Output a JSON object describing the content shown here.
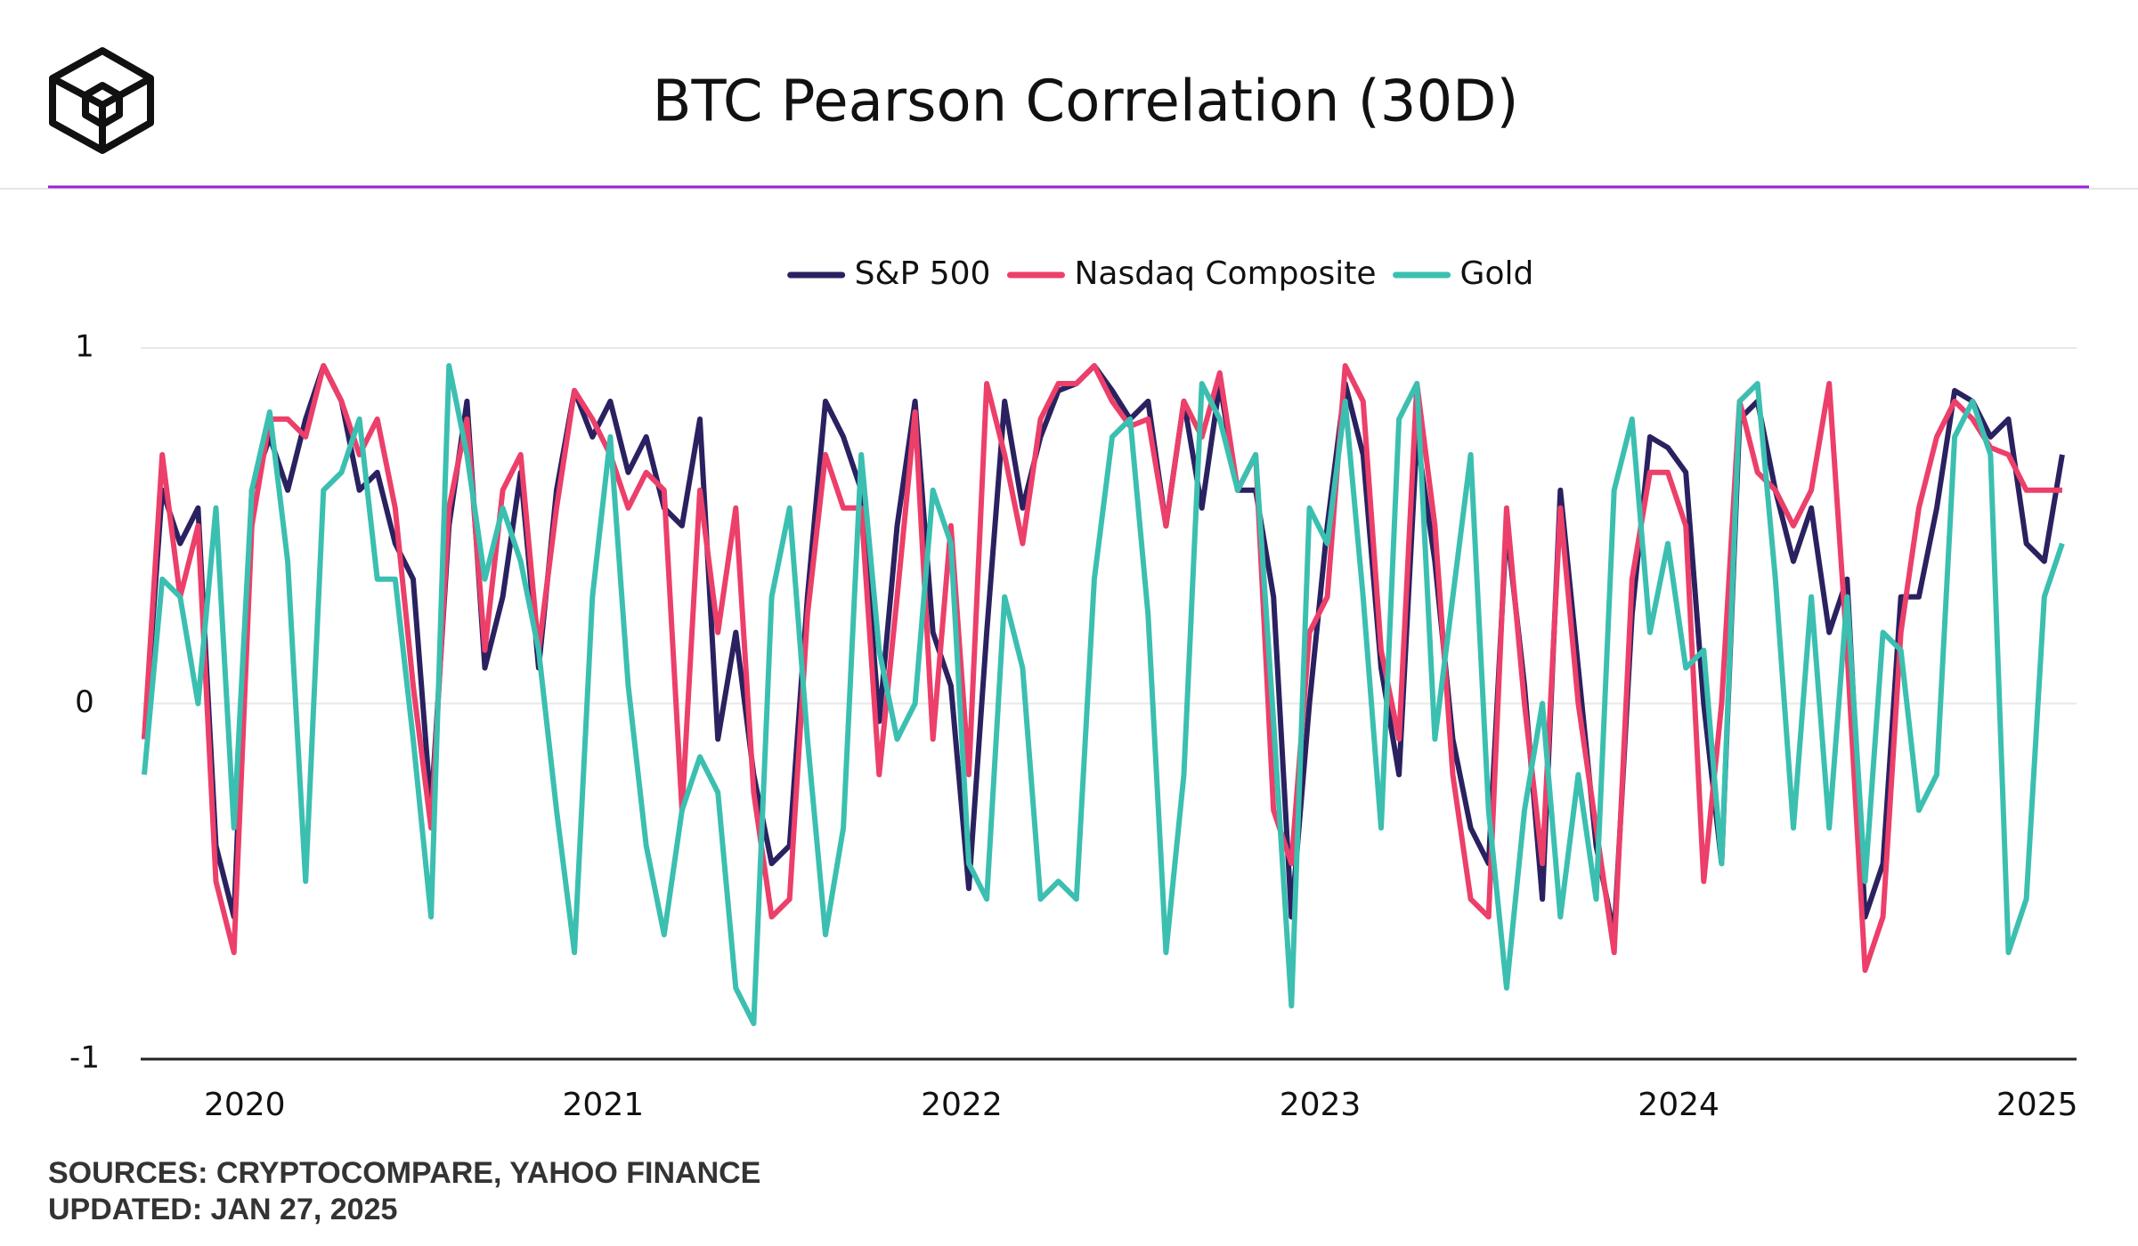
{
  "chart_data": {
    "type": "line",
    "title": "BTC Pearson Correlation (30D)",
    "source": "SOURCES: CRYPTOCOMPARE, YAHOO FINANCE",
    "updated": "UPDATED: JAN 27, 2025",
    "x": [
      2019.72,
      2019.77,
      2019.82,
      2019.87,
      2019.92,
      2019.97,
      2020.02,
      2020.07,
      2020.12,
      2020.17,
      2020.22,
      2020.27,
      2020.32,
      2020.37,
      2020.42,
      2020.47,
      2020.52,
      2020.57,
      2020.62,
      2020.67,
      2020.72,
      2020.77,
      2020.82,
      2020.87,
      2020.92,
      2020.97,
      2021.02,
      2021.07,
      2021.12,
      2021.17,
      2021.22,
      2021.27,
      2021.32,
      2021.37,
      2021.42,
      2021.47,
      2021.52,
      2021.57,
      2021.62,
      2021.67,
      2021.72,
      2021.77,
      2021.82,
      2021.87,
      2021.92,
      2021.97,
      2022.02,
      2022.07,
      2022.12,
      2022.17,
      2022.22,
      2022.27,
      2022.32,
      2022.37,
      2022.42,
      2022.47,
      2022.52,
      2022.57,
      2022.62,
      2022.67,
      2022.72,
      2022.77,
      2022.82,
      2022.87,
      2022.92,
      2022.97,
      2023.02,
      2023.07,
      2023.12,
      2023.17,
      2023.22,
      2023.27,
      2023.32,
      2023.37,
      2023.42,
      2023.47,
      2023.52,
      2023.57,
      2023.62,
      2023.67,
      2023.72,
      2023.77,
      2023.82,
      2023.87,
      2023.92,
      2023.97,
      2024.02,
      2024.07,
      2024.12,
      2024.17,
      2024.22,
      2024.27,
      2024.32,
      2024.37,
      2024.42,
      2024.47,
      2024.52,
      2024.57,
      2024.62,
      2024.67,
      2024.72,
      2024.77,
      2024.82,
      2024.87,
      2024.92,
      2024.97,
      2025.02,
      2025.07
    ],
    "series": [
      {
        "name": "S&P 500",
        "color": "#2a2160",
        "values": [
          -0.1,
          0.6,
          0.45,
          0.55,
          -0.4,
          -0.6,
          0.6,
          0.75,
          0.6,
          0.8,
          0.95,
          0.85,
          0.6,
          0.65,
          0.45,
          0.35,
          -0.3,
          0.5,
          0.85,
          0.1,
          0.3,
          0.65,
          0.1,
          0.6,
          0.88,
          0.75,
          0.85,
          0.65,
          0.75,
          0.55,
          0.5,
          0.8,
          -0.1,
          0.2,
          -0.2,
          -0.45,
          -0.4,
          0.3,
          0.85,
          0.75,
          0.6,
          -0.05,
          0.5,
          0.85,
          0.2,
          0.05,
          -0.52,
          0.2,
          0.85,
          0.55,
          0.75,
          0.88,
          0.9,
          0.95,
          0.88,
          0.8,
          0.85,
          0.5,
          0.85,
          0.55,
          0.9,
          0.6,
          0.6,
          0.3,
          -0.6,
          0.0,
          0.5,
          0.9,
          0.7,
          0.1,
          -0.2,
          0.75,
          0.4,
          -0.1,
          -0.35,
          -0.45,
          0.5,
          0.05,
          -0.55,
          0.6,
          0.1,
          -0.4,
          -0.65,
          0.25,
          0.75,
          0.72,
          0.65,
          0.0,
          -0.45,
          0.8,
          0.85,
          0.6,
          0.4,
          0.55,
          0.2,
          0.35,
          -0.6,
          -0.45,
          0.3,
          0.3,
          0.55,
          0.88,
          0.85,
          0.75,
          0.8,
          0.45,
          0.4,
          0.7
        ]
      },
      {
        "name": "Nasdaq Composite",
        "color": "#ec3f6a",
        "values": [
          -0.1,
          0.7,
          0.3,
          0.5,
          -0.5,
          -0.7,
          0.5,
          0.8,
          0.8,
          0.75,
          0.95,
          0.85,
          0.7,
          0.8,
          0.55,
          0.05,
          -0.35,
          0.55,
          0.8,
          0.15,
          0.6,
          0.7,
          0.15,
          0.55,
          0.88,
          0.8,
          0.7,
          0.55,
          0.65,
          0.6,
          -0.3,
          0.6,
          0.2,
          0.55,
          -0.25,
          -0.6,
          -0.55,
          0.25,
          0.7,
          0.55,
          0.55,
          -0.2,
          0.3,
          0.82,
          -0.1,
          0.5,
          -0.2,
          0.9,
          0.7,
          0.45,
          0.8,
          0.9,
          0.9,
          0.95,
          0.85,
          0.78,
          0.8,
          0.5,
          0.85,
          0.75,
          0.93,
          0.6,
          0.7,
          -0.3,
          -0.45,
          0.2,
          0.3,
          0.95,
          0.85,
          0.15,
          -0.1,
          0.9,
          0.5,
          -0.2,
          -0.55,
          -0.6,
          0.55,
          0.0,
          -0.45,
          0.55,
          0.0,
          -0.35,
          -0.7,
          0.35,
          0.65,
          0.65,
          0.5,
          -0.5,
          0.0,
          0.85,
          0.65,
          0.6,
          0.5,
          0.6,
          0.9,
          0.15,
          -0.75,
          -0.6,
          0.2,
          0.55,
          0.75,
          0.85,
          0.8,
          0.72,
          0.7,
          0.6,
          0.6,
          0.6
        ]
      },
      {
        "name": "Gold",
        "color": "#3bbfb0",
        "values": [
          -0.2,
          0.35,
          0.3,
          0.0,
          0.55,
          -0.35,
          0.6,
          0.82,
          0.4,
          -0.5,
          0.6,
          0.65,
          0.8,
          0.35,
          0.35,
          -0.1,
          -0.6,
          0.95,
          0.7,
          0.35,
          0.55,
          0.4,
          0.15,
          -0.3,
          -0.7,
          0.3,
          0.75,
          0.05,
          -0.4,
          -0.65,
          -0.3,
          -0.15,
          -0.25,
          -0.8,
          -0.9,
          0.3,
          0.55,
          -0.1,
          -0.65,
          -0.35,
          0.7,
          0.15,
          -0.1,
          0.0,
          0.6,
          0.45,
          -0.45,
          -0.55,
          0.3,
          0.1,
          -0.55,
          -0.5,
          -0.55,
          0.35,
          0.75,
          0.8,
          0.25,
          -0.7,
          -0.2,
          0.9,
          0.8,
          0.6,
          0.7,
          -0.05,
          -0.85,
          0.55,
          0.45,
          0.85,
          0.3,
          -0.35,
          0.8,
          0.9,
          -0.1,
          0.3,
          0.7,
          -0.3,
          -0.8,
          -0.3,
          0.0,
          -0.6,
          -0.2,
          -0.55,
          0.6,
          0.8,
          0.2,
          0.45,
          0.1,
          0.15,
          -0.45,
          0.85,
          0.9,
          0.35,
          -0.35,
          0.3,
          -0.35,
          0.3,
          -0.5,
          0.2,
          0.15,
          -0.3,
          -0.2,
          0.75,
          0.85,
          0.7,
          -0.7,
          -0.55,
          0.3,
          0.45
        ]
      }
    ],
    "xlim": [
      2019.71,
      2025.11
    ],
    "xticks": [
      2020,
      2021,
      2022,
      2023,
      2024,
      2025
    ],
    "ylim": [
      -1,
      1
    ],
    "yticks": [
      -1,
      0,
      1
    ],
    "grid": true,
    "legend": "top"
  }
}
